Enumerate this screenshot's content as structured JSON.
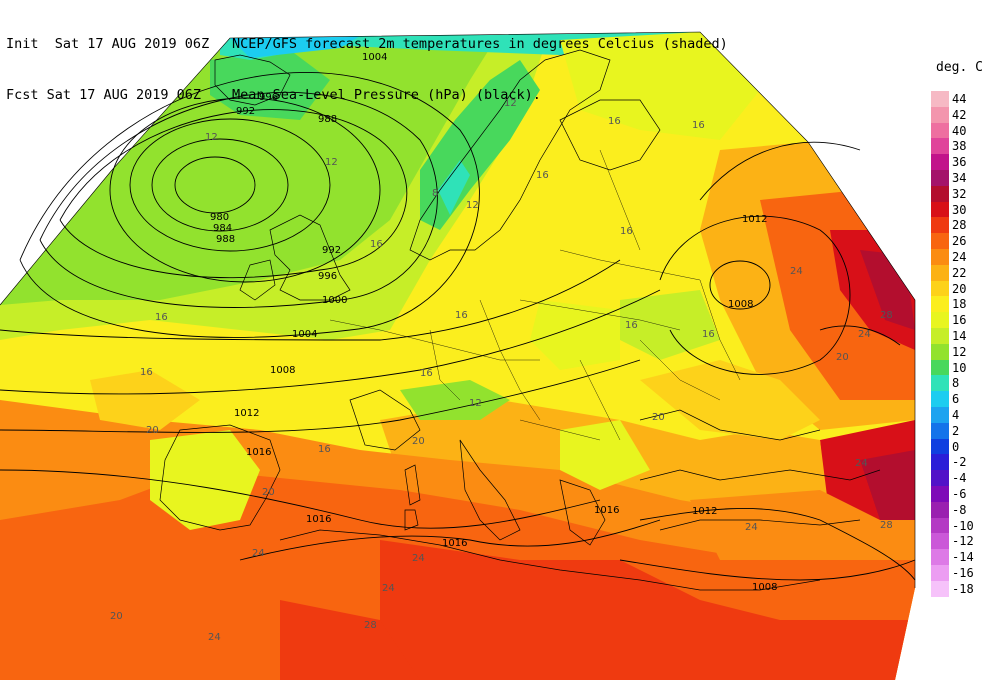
{
  "header": {
    "line1_left": "Init  Sat 17 AUG 2019 06Z",
    "line1_right": "NCEP/GFS forecast 2m temperatures in degrees Celcius (shaded)",
    "line2_left": "Fcst Sat 17 AUG 2019 06Z",
    "line2_right": "Mean Sea-Level Pressure (hPa) (black)."
  },
  "legend": {
    "unit": "deg. C",
    "entries": [
      {
        "label": "44",
        "color": "#f6b9c4"
      },
      {
        "label": "42",
        "color": "#f395ad"
      },
      {
        "label": "40",
        "color": "#ee6fa0"
      },
      {
        "label": "38",
        "color": "#e0449a"
      },
      {
        "label": "36",
        "color": "#c2138a"
      },
      {
        "label": "34",
        "color": "#a4136a"
      },
      {
        "label": "32",
        "color": "#b30e2e"
      },
      {
        "label": "30",
        "color": "#d81018"
      },
      {
        "label": "28",
        "color": "#ef3a10"
      },
      {
        "label": "26",
        "color": "#f86510"
      },
      {
        "label": "24",
        "color": "#fb8c12"
      },
      {
        "label": "22",
        "color": "#fcb215"
      },
      {
        "label": "20",
        "color": "#fdd21a"
      },
      {
        "label": "18",
        "color": "#fbee1e"
      },
      {
        "label": "16",
        "color": "#e8f51f"
      },
      {
        "label": "14",
        "color": "#c6ee28"
      },
      {
        "label": "12",
        "color": "#92e22e"
      },
      {
        "label": "10",
        "color": "#48d85c"
      },
      {
        "label": "8",
        "color": "#2fe2b8"
      },
      {
        "label": "6",
        "color": "#1ccdf0"
      },
      {
        "label": "4",
        "color": "#1ca3f0"
      },
      {
        "label": "2",
        "color": "#1473ea"
      },
      {
        "label": "0",
        "color": "#0f3fe0"
      },
      {
        "label": "-2",
        "color": "#2a1ed8"
      },
      {
        "label": "-4",
        "color": "#5212c8"
      },
      {
        "label": "-6",
        "color": "#7e0ab8"
      },
      {
        "label": "-8",
        "color": "#9a20b0"
      },
      {
        "label": "-10",
        "color": "#b43ac4"
      },
      {
        "label": "-12",
        "color": "#cb58d8"
      },
      {
        "label": "-14",
        "color": "#dd7ae6"
      },
      {
        "label": "-16",
        "color": "#ec9df2"
      },
      {
        "label": "-18",
        "color": "#f6c2fa"
      }
    ]
  },
  "isobar_labels": [
    "1004",
    "996",
    "992",
    "988",
    "980",
    "984",
    "988",
    "992",
    "996",
    "1000",
    "1004",
    "1008",
    "1012",
    "1016",
    "1016",
    "1016",
    "1016",
    "1012",
    "1012",
    "1008",
    "1008"
  ],
  "temp_labels": [
    "12",
    "12",
    "16",
    "16",
    "16",
    "16",
    "12",
    "16",
    "8",
    "12",
    "16",
    "16",
    "16",
    "12",
    "16",
    "16",
    "20",
    "20",
    "20",
    "24",
    "24",
    "24",
    "20",
    "24",
    "28",
    "28",
    "16",
    "16",
    "24",
    "24",
    "24",
    "28",
    "20",
    "20",
    "24"
  ]
}
